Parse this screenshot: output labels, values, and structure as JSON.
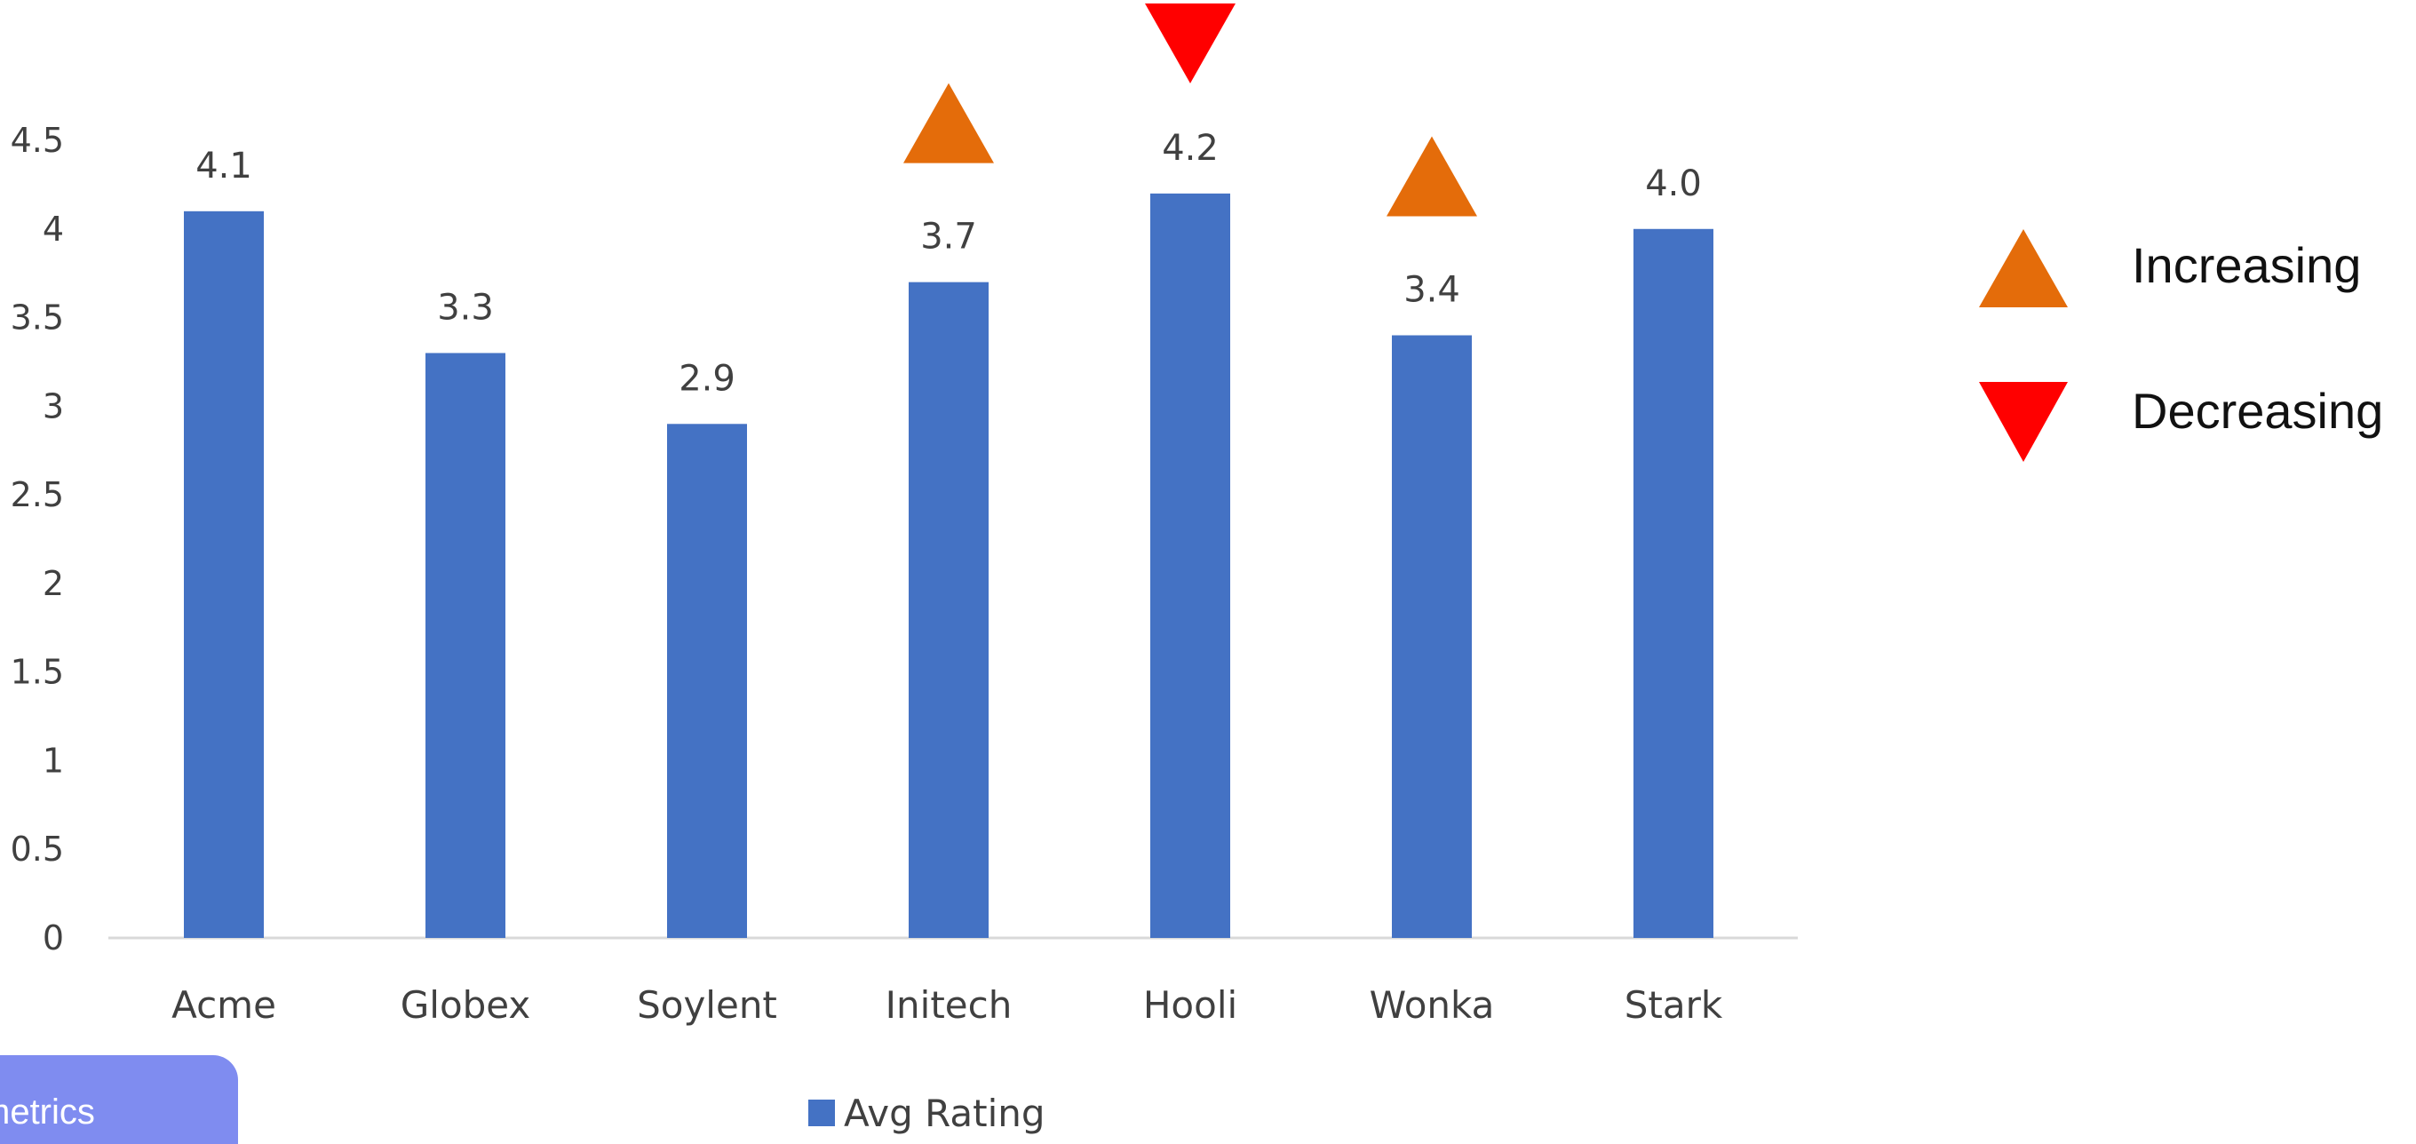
{
  "colors": {
    "bar": "#4472c4",
    "increasing": "#e46c0a",
    "decreasing": "#ff0000",
    "axis": "#d9d9d9",
    "text": "#404040",
    "tab": "#7f8cf0"
  },
  "tab": {
    "label": "metrics"
  },
  "markers_key": {
    "items": [
      {
        "shape": "up-triangle-icon",
        "label": "Increasing"
      },
      {
        "shape": "down-triangle-icon",
        "label": "Decreasing"
      }
    ]
  },
  "chart_data": {
    "type": "bar",
    "categories": [
      "Acme",
      "Globex",
      "Soylent",
      "Initech",
      "Hooli",
      "Wonka",
      "Stark"
    ],
    "series": [
      {
        "name": "Avg Rating",
        "values": [
          4.1,
          3.3,
          2.9,
          3.7,
          4.2,
          3.4,
          4.0
        ]
      }
    ],
    "data_labels": [
      "4.1",
      "3.3",
      "2.9",
      "3.7",
      "4.2",
      "3.4",
      "4.0"
    ],
    "trend_markers": [
      "",
      "",
      "",
      "Increasing",
      "Decreasing",
      "Increasing",
      ""
    ],
    "ylim": [
      0,
      4.5
    ],
    "yticks": [
      "0",
      "0.5",
      "1",
      "1.5",
      "2",
      "2.5",
      "3",
      "3.5",
      "4",
      "4.5"
    ],
    "title": "",
    "xlabel": "",
    "ylabel": "",
    "grid": false,
    "legend": "bottom"
  }
}
